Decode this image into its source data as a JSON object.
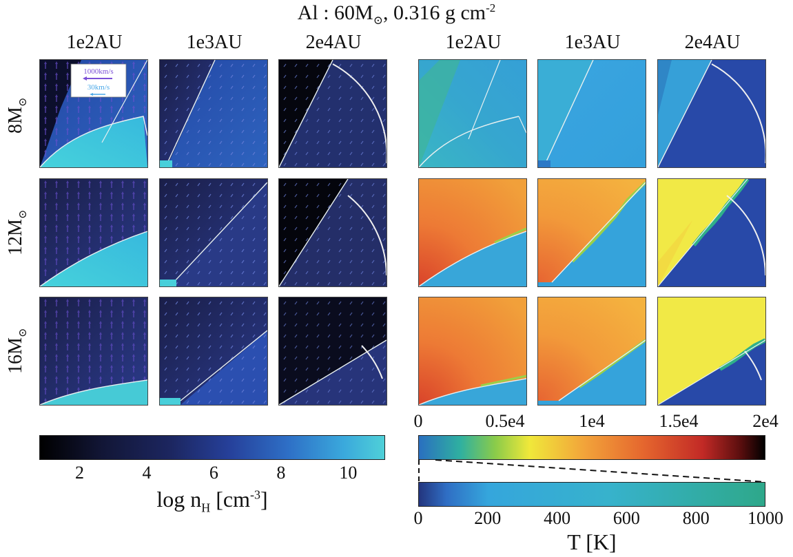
{
  "chart_data": {
    "type": "heatmap",
    "title_main": "Al : 60M",
    "title_sub": "⊙",
    "title_rest": ", 0.316 g cm",
    "title_sup": "-2",
    "column_labels": [
      "1e2AU",
      "1e3AU",
      "2e4AU",
      "1e2AU",
      "1e3AU",
      "2e4AU"
    ],
    "row_labels": [
      {
        "value": "8M",
        "sub": "⊙"
      },
      {
        "value": "12M",
        "sub": "⊙"
      },
      {
        "value": "16M",
        "sub": "⊙"
      }
    ],
    "legend_arrows": [
      {
        "label": "1000km/s",
        "color": "#7a4fd6"
      },
      {
        "label": "30km/s",
        "color": "#4aa8e8"
      }
    ],
    "density_colorbar": {
      "ticks": [
        "2",
        "4",
        "6",
        "8",
        "10"
      ],
      "tick_values": [
        2,
        4,
        6,
        8,
        10
      ],
      "range": [
        0.8,
        11.1
      ],
      "label_main": "log n",
      "label_sub": "H",
      "label_rest": " [cm",
      "label_sup": "-3",
      "label_end": "]"
    },
    "temperature_colorbar_hot": {
      "ticks": [
        "0",
        "0.5e4",
        "1e4",
        "1.5e4",
        "2e4"
      ],
      "tick_values": [
        0,
        5000,
        10000,
        15000,
        20000
      ],
      "range": [
        0,
        20000
      ]
    },
    "temperature_colorbar_cold": {
      "ticks": [
        "0",
        "200",
        "400",
        "600",
        "800",
        "1000"
      ],
      "tick_values": [
        0,
        200,
        400,
        600,
        800,
        1000
      ],
      "range": [
        0,
        1000
      ]
    },
    "temperature_label": "T [K]"
  }
}
